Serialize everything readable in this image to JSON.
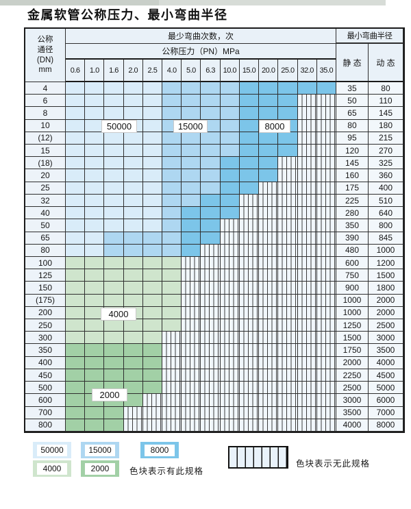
{
  "title": "金属软管公称压力、最小弯曲半径",
  "colors": {
    "c50000": "#d9ecf9",
    "c15000": "#aed7f1",
    "c8000": "#7cc5e9",
    "c4000": "#cfe5cd",
    "c2000": "#a2d0a6"
  },
  "header": {
    "dn_lines": [
      "公称",
      "通径",
      "(DN)",
      "mm"
    ],
    "bend_cycles": "最少弯曲次数，次",
    "min_radius": "最小弯曲半径",
    "pressure": "公称压力（PN）MPa",
    "static_label": "静 态",
    "dynamic_label": "动 态",
    "pressures": [
      "0.6",
      "1.0",
      "1.6",
      "2.0",
      "2.5",
      "4.0",
      "5.0",
      "6.3",
      "10.0",
      "15.0",
      "20.0",
      "25.0",
      "32.0",
      "35.0"
    ]
  },
  "rows": [
    {
      "dn": "4",
      "static": "35",
      "dynamic": "80",
      "zones": [
        [
          5,
          "c50000"
        ],
        [
          4,
          "c15000"
        ],
        [
          5,
          "c8000"
        ]
      ]
    },
    {
      "dn": "6",
      "static": "50",
      "dynamic": "110",
      "zones": [
        [
          5,
          "c50000"
        ],
        [
          4,
          "c15000"
        ],
        [
          3,
          "c8000"
        ]
      ]
    },
    {
      "dn": "8",
      "static": "65",
      "dynamic": "145",
      "zones": [
        [
          5,
          "c50000"
        ],
        [
          4,
          "c15000"
        ],
        [
          3,
          "c8000"
        ]
      ]
    },
    {
      "dn": "10",
      "static": "80",
      "dynamic": "180",
      "zones": [
        [
          5,
          "c50000"
        ],
        [
          4,
          "c15000"
        ],
        [
          3,
          "c8000"
        ]
      ]
    },
    {
      "dn": "(12)",
      "static": "95",
      "dynamic": "215",
      "zones": [
        [
          5,
          "c50000"
        ],
        [
          4,
          "c15000"
        ],
        [
          3,
          "c8000"
        ]
      ]
    },
    {
      "dn": "15",
      "static": "120",
      "dynamic": "270",
      "zones": [
        [
          5,
          "c50000"
        ],
        [
          4,
          "c15000"
        ],
        [
          3,
          "c8000"
        ]
      ]
    },
    {
      "dn": "(18)",
      "static": "145",
      "dynamic": "325",
      "zones": [
        [
          5,
          "c50000"
        ],
        [
          3,
          "c15000"
        ],
        [
          3,
          "c8000"
        ]
      ]
    },
    {
      "dn": "20",
      "static": "160",
      "dynamic": "360",
      "zones": [
        [
          5,
          "c50000"
        ],
        [
          3,
          "c15000"
        ],
        [
          3,
          "c8000"
        ]
      ]
    },
    {
      "dn": "25",
      "static": "175",
      "dynamic": "400",
      "zones": [
        [
          5,
          "c50000"
        ],
        [
          3,
          "c15000"
        ],
        [
          2,
          "c8000"
        ]
      ]
    },
    {
      "dn": "32",
      "static": "225",
      "dynamic": "510",
      "zones": [
        [
          5,
          "c50000"
        ],
        [
          2,
          "c15000"
        ],
        [
          2,
          "c8000"
        ]
      ]
    },
    {
      "dn": "40",
      "static": "280",
      "dynamic": "640",
      "zones": [
        [
          5,
          "c50000"
        ],
        [
          1,
          "c15000"
        ],
        [
          3,
          "c8000"
        ]
      ]
    },
    {
      "dn": "50",
      "static": "350",
      "dynamic": "800",
      "zones": [
        [
          5,
          "c50000"
        ],
        [
          1,
          "c15000"
        ],
        [
          2,
          "c8000"
        ]
      ]
    },
    {
      "dn": "65",
      "static": "390",
      "dynamic": "845",
      "zones": [
        [
          2,
          "c50000"
        ],
        [
          4,
          "c15000"
        ],
        [
          2,
          "c8000"
        ]
      ]
    },
    {
      "dn": "80",
      "static": "480",
      "dynamic": "1000",
      "zones": [
        [
          2,
          "c50000"
        ],
        [
          4,
          "c15000"
        ],
        [
          1,
          "c8000"
        ]
      ]
    },
    {
      "dn": "100",
      "static": "600",
      "dynamic": "1200",
      "zones": [
        [
          6,
          "c4000"
        ]
      ]
    },
    {
      "dn": "125",
      "static": "750",
      "dynamic": "1500",
      "zones": [
        [
          6,
          "c4000"
        ]
      ]
    },
    {
      "dn": "150",
      "static": "900",
      "dynamic": "1800",
      "zones": [
        [
          6,
          "c4000"
        ]
      ]
    },
    {
      "dn": "(175)",
      "static": "1000",
      "dynamic": "2000",
      "zones": [
        [
          6,
          "c4000"
        ]
      ]
    },
    {
      "dn": "200",
      "static": "1000",
      "dynamic": "2000",
      "zones": [
        [
          6,
          "c4000"
        ]
      ]
    },
    {
      "dn": "250",
      "static": "1250",
      "dynamic": "2500",
      "zones": [
        [
          6,
          "c4000"
        ]
      ]
    },
    {
      "dn": "300",
      "static": "1500",
      "dynamic": "3000",
      "zones": [
        [
          5,
          "c4000"
        ]
      ]
    },
    {
      "dn": "350",
      "static": "1750",
      "dynamic": "3500",
      "zones": [
        [
          5,
          "c2000"
        ]
      ]
    },
    {
      "dn": "400",
      "static": "2000",
      "dynamic": "4000",
      "zones": [
        [
          5,
          "c2000"
        ]
      ]
    },
    {
      "dn": "450",
      "static": "2250",
      "dynamic": "4500",
      "zones": [
        [
          5,
          "c2000"
        ]
      ]
    },
    {
      "dn": "500",
      "static": "2500",
      "dynamic": "5000",
      "zones": [
        [
          5,
          "c2000"
        ]
      ]
    },
    {
      "dn": "600",
      "static": "3000",
      "dynamic": "6000",
      "zones": [
        [
          4,
          "c2000"
        ]
      ]
    },
    {
      "dn": "700",
      "static": "3500",
      "dynamic": "7000",
      "zones": [
        [
          3,
          "c2000"
        ]
      ]
    },
    {
      "dn": "800",
      "static": "4000",
      "dynamic": "8000",
      "zones": [
        [
          3,
          "c2000"
        ]
      ]
    }
  ],
  "overlay_labels": [
    {
      "text": "50000"
    },
    {
      "text": "15000"
    },
    {
      "text": "8000"
    },
    {
      "text": "4000"
    },
    {
      "text": "2000"
    }
  ],
  "legend": {
    "swatches": [
      {
        "label": "50000",
        "color_key": "c50000"
      },
      {
        "label": "15000",
        "color_key": "c15000"
      },
      {
        "label": "8000",
        "color_key": "c8000"
      },
      {
        "label": "4000",
        "color_key": "c4000"
      },
      {
        "label": "2000",
        "color_key": "c2000"
      }
    ],
    "has_spec_text": "色块表示有此规格",
    "no_spec_text": "色块表示无此规格"
  }
}
